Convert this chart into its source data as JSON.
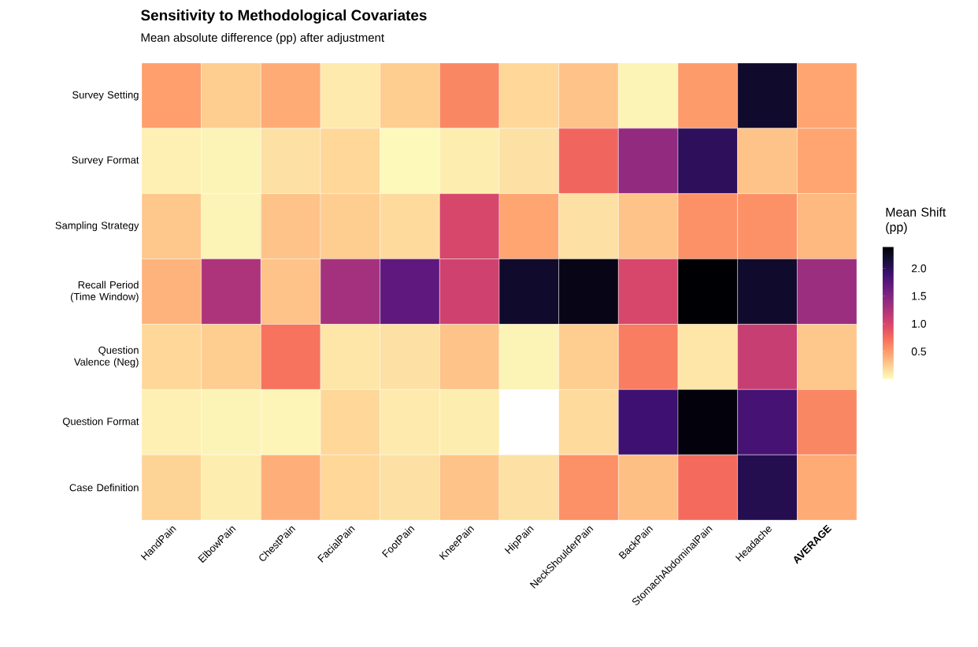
{
  "chart_data": {
    "type": "heatmap",
    "title": "Sensitivity to Methodological Covariates",
    "subtitle": "Mean absolute difference (pp) after adjustment",
    "clabel": "Mean Shift (pp)",
    "categories": [
      "HandPain",
      "ElbowPain",
      "ChestPain",
      "FacialPain",
      "FootPain",
      "KneePain",
      "HipPain",
      "NeckShoulderPain",
      "BackPain",
      "StomachAbdominalPain",
      "Headache",
      "**AVERAGE**"
    ],
    "y_categories": [
      "Survey Setting",
      "Survey Format",
      "Sampling Strategy",
      "Recall Period (Time Window)",
      "Question Valence (Neg)",
      "Question Format",
      "Case Definition"
    ],
    "cells": [
      [
        0.48,
        0.25,
        0.42,
        0.1,
        0.25,
        0.6,
        0.2,
        0.3,
        0.05,
        0.5,
        2.2,
        0.45
      ],
      [
        0.07,
        0.05,
        0.15,
        0.2,
        0.02,
        0.08,
        0.15,
        0.78,
        1.4,
        2.0,
        0.3,
        0.45
      ],
      [
        0.28,
        0.05,
        0.3,
        0.25,
        0.18,
        1.0,
        0.45,
        0.15,
        0.3,
        0.55,
        0.55,
        0.35
      ],
      [
        0.38,
        1.25,
        0.3,
        1.3,
        1.7,
        1.05,
        2.2,
        2.3,
        1.0,
        2.39,
        2.2,
        1.35
      ],
      [
        0.2,
        0.25,
        0.7,
        0.12,
        0.15,
        0.3,
        0.05,
        0.25,
        0.65,
        0.12,
        1.1,
        0.28
      ],
      [
        0.07,
        0.05,
        0.04,
        0.2,
        0.1,
        0.08,
        null,
        0.18,
        1.9,
        2.35,
        1.85,
        0.6
      ],
      [
        0.22,
        0.08,
        0.4,
        0.2,
        0.15,
        0.3,
        0.15,
        0.55,
        0.32,
        0.75,
        2.05,
        0.42
      ]
    ],
    "clim": [
      0,
      2.39
    ],
    "cticks": [
      0.5,
      {
        "value": 1,
        "label": "1.0"
      },
      1.5,
      {
        "value": 2,
        "label": "2.0"
      }
    ]
  }
}
